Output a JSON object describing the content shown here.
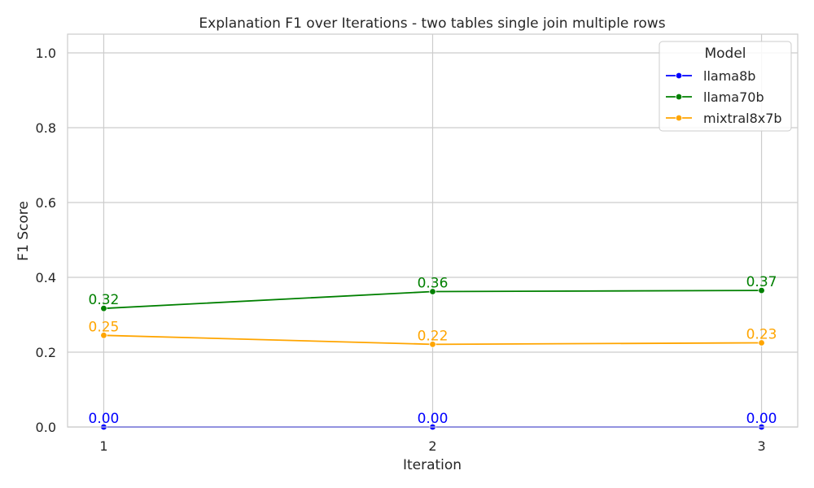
{
  "chart_data": {
    "type": "line",
    "title": "Explanation F1 over Iterations - two tables single join multiple rows",
    "xlabel": "Iteration",
    "ylabel": "F1 Score",
    "x": [
      1,
      2,
      3
    ],
    "x_tick_labels": [
      "1",
      "2",
      "3"
    ],
    "ylim": [
      0,
      1.05
    ],
    "y_ticks": [
      0.0,
      0.2,
      0.4,
      0.6,
      0.8,
      1.0
    ],
    "y_tick_labels": [
      "0.0",
      "0.2",
      "0.4",
      "0.6",
      "0.8",
      "1.0"
    ],
    "grid": true,
    "legend": {
      "title": "Model",
      "placement": "top-right"
    },
    "series": [
      {
        "name": "llama8b",
        "color": "#0000ff",
        "values": [
          0.0,
          0.0,
          0.0
        ],
        "labels": [
          "0.00",
          "0.00",
          "0.00"
        ]
      },
      {
        "name": "llama70b",
        "color": "#008000",
        "values": [
          0.317,
          0.362,
          0.365
        ],
        "labels": [
          "0.32",
          "0.36",
          "0.37"
        ]
      },
      {
        "name": "mixtral8x7b",
        "color": "#ffa500",
        "values": [
          0.245,
          0.221,
          0.225
        ],
        "labels": [
          "0.25",
          "0.22",
          "0.23"
        ]
      }
    ]
  }
}
